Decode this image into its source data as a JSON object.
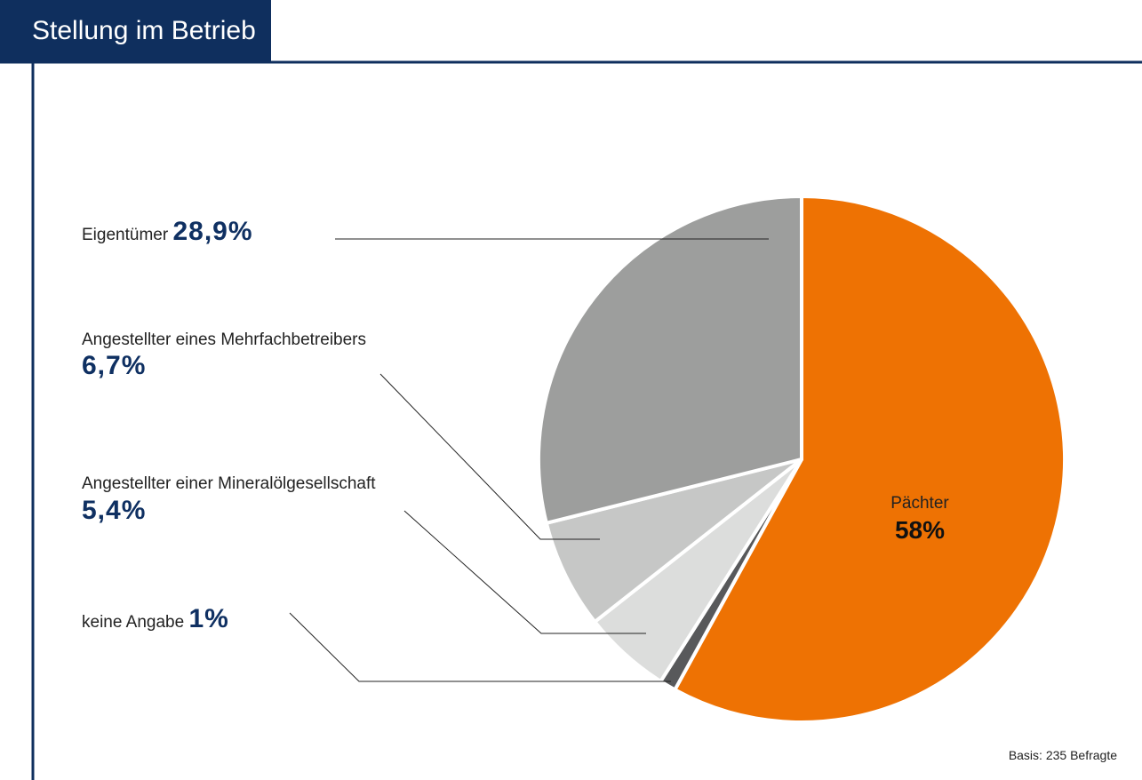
{
  "chart_data": {
    "type": "pie",
    "title": "Stellung im Betrieb",
    "categories": [
      "Pächter",
      "keine Angabe",
      "Angestellter einer Mineralölgesellschaft",
      "Angestellter eines Mehrfachbetreibers",
      "Eigentümer"
    ],
    "values": [
      58,
      1,
      5.4,
      6.7,
      28.9
    ],
    "value_labels": [
      "58%",
      "1%",
      "5,4%",
      "6,7%",
      "28,9%"
    ],
    "colors": [
      "#ee7203",
      "#58595b",
      "#dcdddc",
      "#c6c7c6",
      "#9d9e9d"
    ],
    "note": "Basis: 235 Befragte"
  }
}
